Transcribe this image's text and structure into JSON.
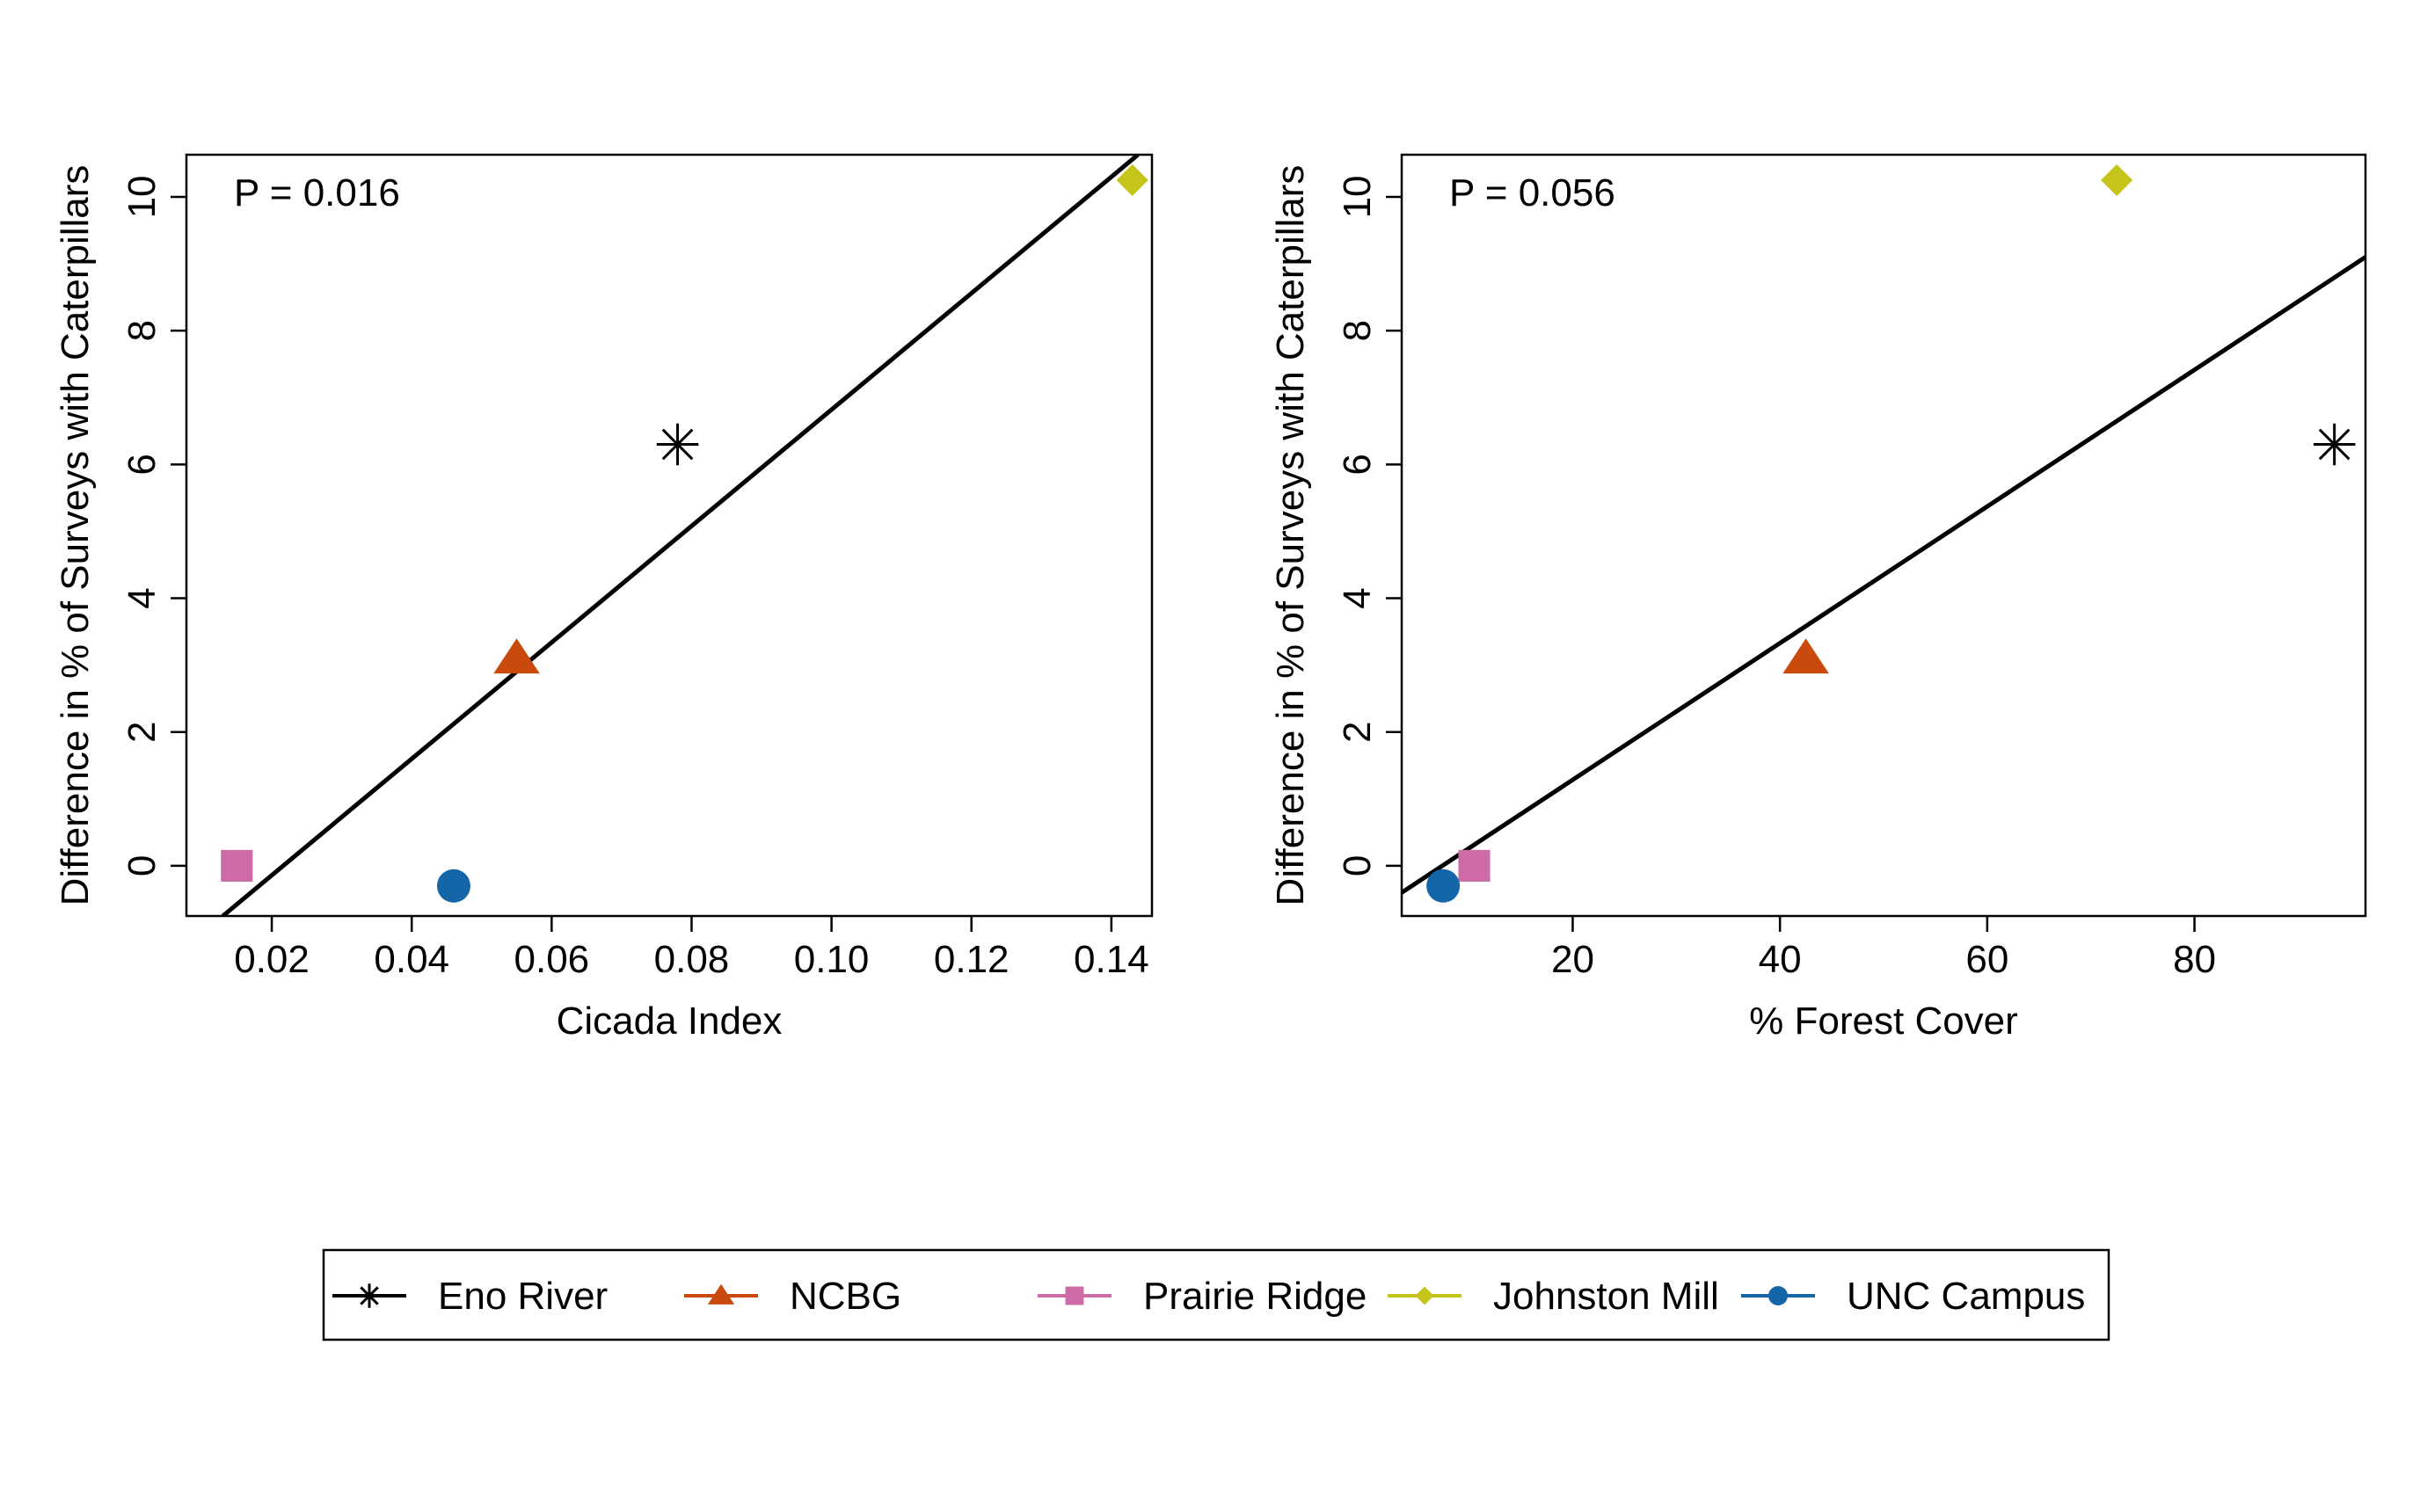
{
  "legend": {
    "entries": [
      {
        "label": "Eno River",
        "marker": "asterisk",
        "color": "#000000"
      },
      {
        "label": "NCBG",
        "marker": "triangle",
        "color": "#c94a0c"
      },
      {
        "label": "Prairie Ridge",
        "marker": "square",
        "color": "#cc6ba6"
      },
      {
        "label": "Johnston Mill",
        "marker": "diamond",
        "color": "#c4c41a"
      },
      {
        "label": "UNC Campus",
        "marker": "circle",
        "color": "#1565a9"
      }
    ]
  },
  "chart_data": [
    {
      "type": "scatter",
      "title": "",
      "xlabel": "Cicada Index",
      "ylabel": "Difference in % of Surveys with Caterpillars",
      "annotation": "P = 0.016",
      "xlim": [
        0.0078,
        0.1458
      ],
      "ylim": [
        -0.75,
        10.63
      ],
      "xticks": [
        0.02,
        0.04,
        0.06,
        0.08,
        0.1,
        0.12,
        0.14
      ],
      "xtick_labels": [
        "0.02",
        "0.04",
        "0.06",
        "0.08",
        "0.10",
        "0.12",
        "0.14"
      ],
      "yticks": [
        0,
        2,
        4,
        6,
        8,
        10
      ],
      "ytick_labels": [
        "0",
        "2",
        "4",
        "6",
        "8",
        "10"
      ],
      "grid": false,
      "points": [
        {
          "site": "Eno River",
          "x": 0.078,
          "y": 6.3
        },
        {
          "site": "NCBG",
          "x": 0.055,
          "y": 3.1
        },
        {
          "site": "Prairie Ridge",
          "x": 0.015,
          "y": 0.0
        },
        {
          "site": "Johnston Mill",
          "x": 0.143,
          "y": 10.25
        },
        {
          "site": "UNC Campus",
          "x": 0.046,
          "y": -0.3
        }
      ],
      "fit_line": {
        "x": [
          0.013,
          0.1438
        ],
        "y": [
          -0.75,
          10.63
        ]
      }
    },
    {
      "type": "scatter",
      "title": "",
      "xlabel": "% Forest Cover",
      "ylabel": "Difference in % of Surveys with Caterpillars",
      "annotation": "P = 0.056",
      "xlim": [
        3.5,
        96.5
      ],
      "ylim": [
        -0.75,
        10.63
      ],
      "xticks": [
        20,
        40,
        60,
        80
      ],
      "xtick_labels": [
        "20",
        "40",
        "60",
        "80"
      ],
      "yticks": [
        0,
        2,
        4,
        6,
        8,
        10
      ],
      "ytick_labels": [
        "0",
        "2",
        "4",
        "6",
        "8",
        "10"
      ],
      "grid": false,
      "points": [
        {
          "site": "Eno River",
          "x": 93.5,
          "y": 6.3
        },
        {
          "site": "NCBG",
          "x": 42.5,
          "y": 3.1
        },
        {
          "site": "Prairie Ridge",
          "x": 10.5,
          "y": 0.0
        },
        {
          "site": "Johnston Mill",
          "x": 72.5,
          "y": 10.25
        },
        {
          "site": "UNC Campus",
          "x": 7.5,
          "y": -0.3
        }
      ],
      "fit_line": {
        "x": [
          3.5,
          96.5
        ],
        "y": [
          -0.4,
          9.1
        ]
      }
    }
  ]
}
